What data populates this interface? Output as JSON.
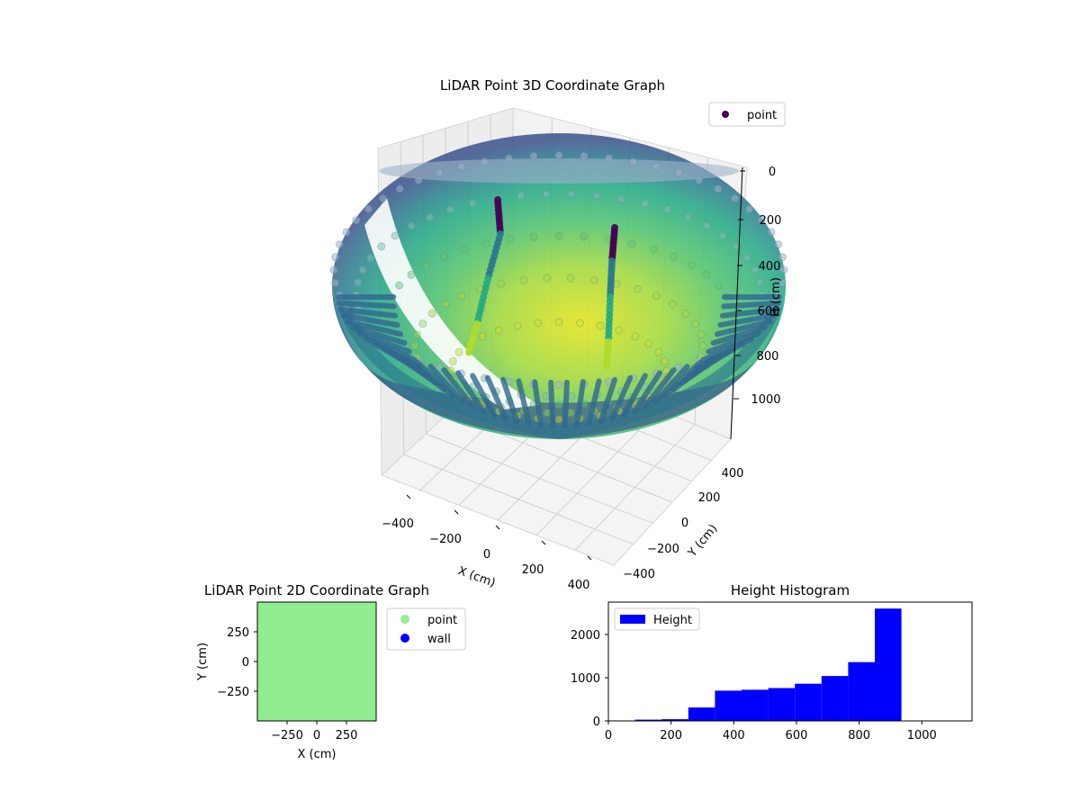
{
  "chart_data": [
    {
      "type": "scatter3d",
      "title": "LiDAR Point 3D Coordinate Graph",
      "xlabel": "X (cm)",
      "ylabel": "Y (cm)",
      "zlabel": "H (cm)",
      "x_ticks": [
        "−400",
        "−200",
        "0",
        "200",
        "400"
      ],
      "y_ticks": [
        "−400",
        "−200",
        "0",
        "200",
        "400"
      ],
      "z_ticks": [
        "0",
        "200",
        "400",
        "600",
        "800",
        "1000"
      ],
      "xlim": [
        -450,
        450
      ],
      "ylim": [
        -450,
        450
      ],
      "zlim": [
        1100,
        0
      ],
      "z_inverted": true,
      "legend": {
        "labels": [
          "point"
        ],
        "loc": "upper right",
        "colors": [
          "#440154"
        ]
      },
      "colormap": "viridis",
      "surface": {
        "shape": "bowl",
        "rim_radius": 450,
        "rim_height": 0,
        "bottom_height": 900
      },
      "tracks": [
        {
          "points": [
            [
              -150,
              180,
              30
            ],
            [
              -170,
              140,
              200
            ],
            [
              -210,
              60,
              420
            ],
            [
              -260,
              -40,
              620
            ],
            [
              -300,
              -120,
              820
            ]
          ]
        },
        {
          "points": [
            [
              150,
              140,
              60
            ],
            [
              140,
              110,
              250
            ],
            [
              120,
              60,
              450
            ],
            [
              110,
              20,
              620
            ],
            [
              100,
              -20,
              760
            ]
          ]
        }
      ]
    },
    {
      "type": "scatter",
      "title": "LiDAR Point 2D Coordinate Graph",
      "xlabel": "X (cm)",
      "ylabel": "Y (cm)",
      "x_ticks": [
        "−250",
        "0",
        "250"
      ],
      "y_ticks": [
        "250",
        "0",
        "−250"
      ],
      "xlim": [
        -500,
        500
      ],
      "ylim": [
        -500,
        500
      ],
      "series": [
        {
          "name": "point",
          "color": "#90ee90",
          "fill_region": [
            [
              -500,
              500
            ],
            [
              -500,
              500
            ]
          ]
        },
        {
          "name": "wall",
          "color": "#0000ff"
        }
      ],
      "legend_loc": "outside right"
    },
    {
      "type": "bar",
      "title": "Height Histogram",
      "legend": [
        "Height"
      ],
      "color": "#0000ff",
      "x_ticks": [
        "0",
        "200",
        "400",
        "600",
        "800",
        "1000"
      ],
      "y_ticks": [
        "0",
        "1000",
        "2000"
      ],
      "xlim": [
        0,
        1160
      ],
      "ylim": [
        0,
        2750
      ],
      "bins": [
        {
          "start": 85,
          "end": 170,
          "count": 30
        },
        {
          "start": 170,
          "end": 255,
          "count": 40
        },
        {
          "start": 255,
          "end": 340,
          "count": 310
        },
        {
          "start": 340,
          "end": 425,
          "count": 700
        },
        {
          "start": 425,
          "end": 510,
          "count": 720
        },
        {
          "start": 510,
          "end": 595,
          "count": 760
        },
        {
          "start": 595,
          "end": 680,
          "count": 860
        },
        {
          "start": 680,
          "end": 765,
          "count": 1040
        },
        {
          "start": 765,
          "end": 850,
          "count": 1360
        },
        {
          "start": 850,
          "end": 935,
          "count": 2600
        }
      ]
    }
  ]
}
